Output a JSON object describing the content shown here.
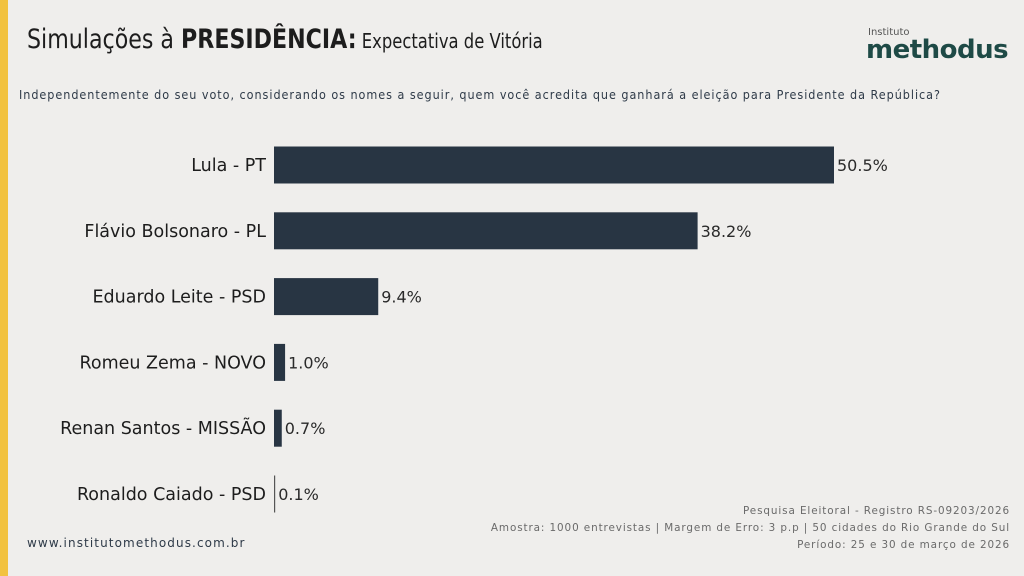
{
  "header": {
    "title_prefix": "Simulações à ",
    "title_bold": "PRESIDÊNCIA:",
    "title_suffix": " Expectativa de Vitória",
    "logo_small": "Instituto",
    "logo_big": "methodus"
  },
  "question": "Independentemente do seu voto, considerando os nomes a seguir, quem você acredita que ganhará a eleição para Presidente da República?",
  "colors": {
    "accent": "#f2c23f",
    "bar": "#283543",
    "background": "#efeeec",
    "logo": "#1e4a46"
  },
  "chart_data": {
    "type": "bar",
    "orientation": "horizontal",
    "title": "Simulações à PRESIDÊNCIA: Expectativa de Vitória",
    "xlabel": "",
    "ylabel": "",
    "categories": [
      "Lula - PT",
      "Flávio Bolsonaro - PL",
      "Eduardo Leite - PSD",
      "Romeu Zema - NOVO",
      "Renan Santos - MISSÃO",
      "Ronaldo Caiado - PSD"
    ],
    "values": [
      50.5,
      38.2,
      9.4,
      1.0,
      0.7,
      0.1
    ],
    "value_labels": [
      "50.5%",
      "38.2%",
      "9.4%",
      "1.0%",
      "0.7%",
      "0.1%"
    ],
    "unit": "%",
    "xlim": [
      0,
      50.5
    ],
    "grid": false,
    "legend": "none"
  },
  "footer": {
    "website": "www.institutomethodus.com.br",
    "info_lines": [
      "Pesquisa Eleitoral - Registro RS-09203/2026",
      "Amostra: 1000 entrevistas | Margem de Erro: 3 p.p | 50 cidades do Rio Grande do Sul",
      "Período: 25 e 30 de março de 2026"
    ]
  }
}
